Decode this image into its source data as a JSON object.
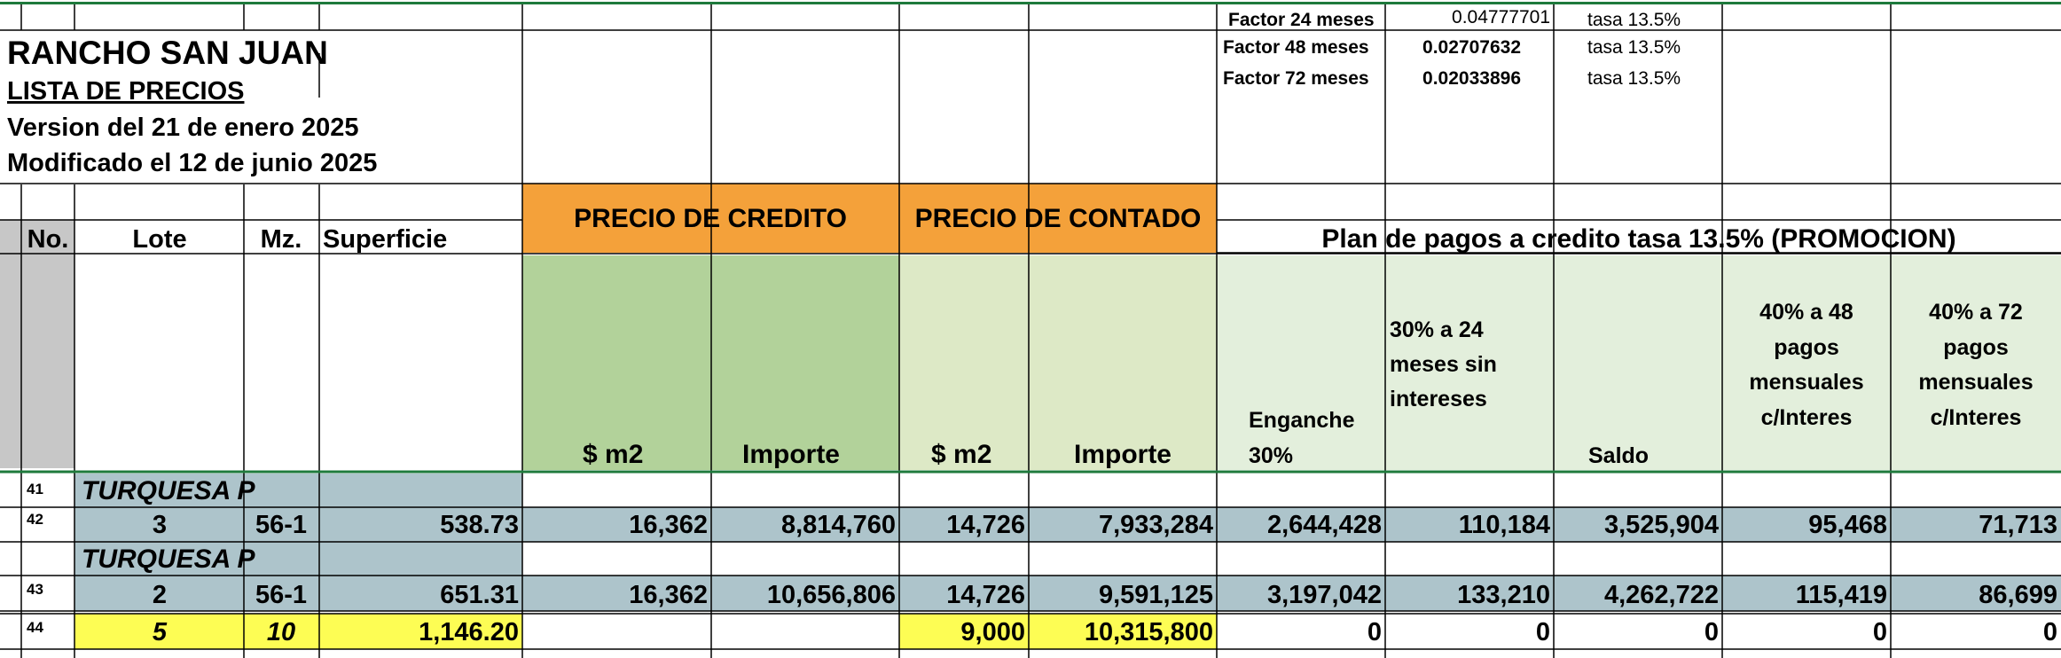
{
  "header": {
    "company": "RANCHO SAN JUAN",
    "list_title": "LISTA DE PRECIOS",
    "version": "Version del 21 de enero 2025",
    "modified": "Modificado el 12 de junio 2025"
  },
  "factors": [
    {
      "label": "Factor 24 meses",
      "value": "0.04777701",
      "rate": "tasa 13.5%"
    },
    {
      "label": "Factor 48 meses",
      "value": "0.02707632",
      "rate": "tasa 13.5%"
    },
    {
      "label": "Factor 72 meses",
      "value": "0.02033896",
      "rate": "tasa 13.5%"
    }
  ],
  "groups": {
    "credit": "PRECIO DE CREDITO",
    "cash": "PRECIO DE CONTADO",
    "plan": "Plan de pagos a credito tasa 13.5% (PROMOCION)"
  },
  "columns": {
    "no": "No.",
    "lote": "Lote",
    "mz": "Mz.",
    "superficie": "Superficie",
    "credit_m2": "$ m2",
    "credit_importe": "Importe",
    "cash_m2": "$ m2",
    "cash_importe": "Importe",
    "enganche": [
      "Enganche",
      "30%"
    ],
    "c24": [
      "30% a 24",
      "meses sin",
      "intereses"
    ],
    "saldo": "Saldo",
    "c48": [
      "40% a 48",
      "pagos",
      "mensuales",
      "c/Interes"
    ],
    "c72": [
      "40% a 72",
      "pagos",
      "mensuales",
      "c/Interes"
    ]
  },
  "row_numbers": [
    "41",
    "42",
    "43",
    "44"
  ],
  "section_label": "TURQUESA P",
  "rows": [
    {
      "lote": "3",
      "mz": "56-1",
      "superficie": "538.73",
      "credit_m2": "16,362",
      "credit_importe": "8,814,760",
      "cash_m2": "14,726",
      "cash_importe": "7,933,284",
      "enganche": "2,644,428",
      "c24": "110,184",
      "saldo": "3,525,904",
      "c48": "95,468",
      "c72": "71,713"
    },
    {
      "lote": "2",
      "mz": "56-1",
      "superficie": "651.31",
      "credit_m2": "16,362",
      "credit_importe": "10,656,806",
      "cash_m2": "14,726",
      "cash_importe": "9,591,125",
      "enganche": "3,197,042",
      "c24": "133,210",
      "saldo": "4,262,722",
      "c48": "115,419",
      "c72": "86,699"
    },
    {
      "lote": "5",
      "mz": "10",
      "superficie": "1,146.20",
      "credit_m2": "",
      "credit_importe": "",
      "cash_m2": "9,000",
      "cash_importe": "10,315,800",
      "enganche": "0",
      "c24": "0",
      "saldo": "0",
      "c48": "0",
      "c72": "0"
    }
  ],
  "colors": {
    "orange": "#f4a13a",
    "green_dark": "#b2d29a",
    "green_mid": "#dde9c6",
    "green_light": "#e3efdc",
    "row_blue": "#adc4cb",
    "highlight_yellow": "#fdfd54",
    "gray": "#c7c7c7",
    "grid": "#000000",
    "accent_green": "#1e7a3c"
  }
}
